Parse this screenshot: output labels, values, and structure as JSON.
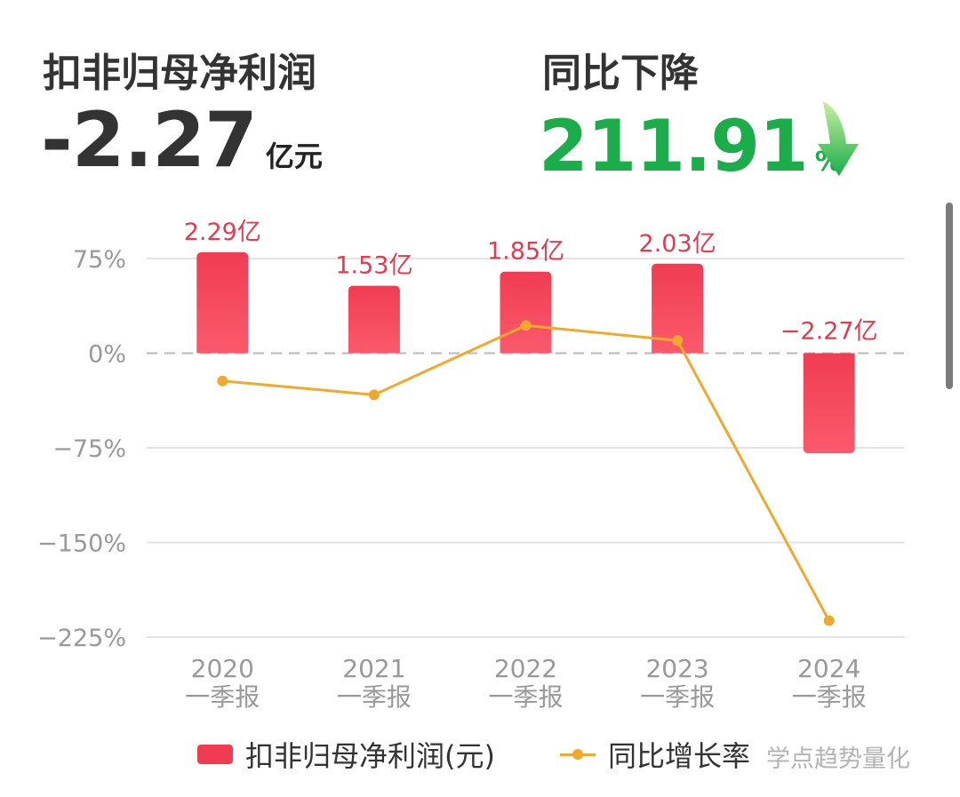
{
  "header": {
    "metric_label": "扣非归母净利润",
    "metric_value": "-2.27",
    "metric_unit": "亿元",
    "change_label": "同比下降",
    "change_value": "211.91",
    "change_unit": "%"
  },
  "watermark": "学点趋势量化",
  "colors": {
    "bar": "#f03c52",
    "line": "#f0a92c",
    "down": "#1aad4a",
    "label": "#e23a4f"
  },
  "chart_data": {
    "type": "bar",
    "categories": [
      "2020\n一季报",
      "2021\n一季报",
      "2022\n一季报",
      "2023\n一季报",
      "2024\n一季报"
    ],
    "yticks": [
      "75%",
      "0%",
      "−75%",
      "−150%",
      "−225%"
    ],
    "ylim": [
      -225,
      75
    ],
    "series": [
      {
        "name": "扣非归母净利润(元)",
        "type": "bar",
        "values": [
          2.29,
          1.53,
          1.85,
          2.03,
          -2.27
        ],
        "labels": [
          "2.29亿",
          "1.53亿",
          "1.85亿",
          "2.03亿",
          "−2.27亿"
        ]
      },
      {
        "name": "同比增长率",
        "type": "line",
        "values": [
          -22,
          -33,
          22,
          10,
          -212
        ]
      }
    ],
    "grid": true,
    "legend": "bottom"
  }
}
